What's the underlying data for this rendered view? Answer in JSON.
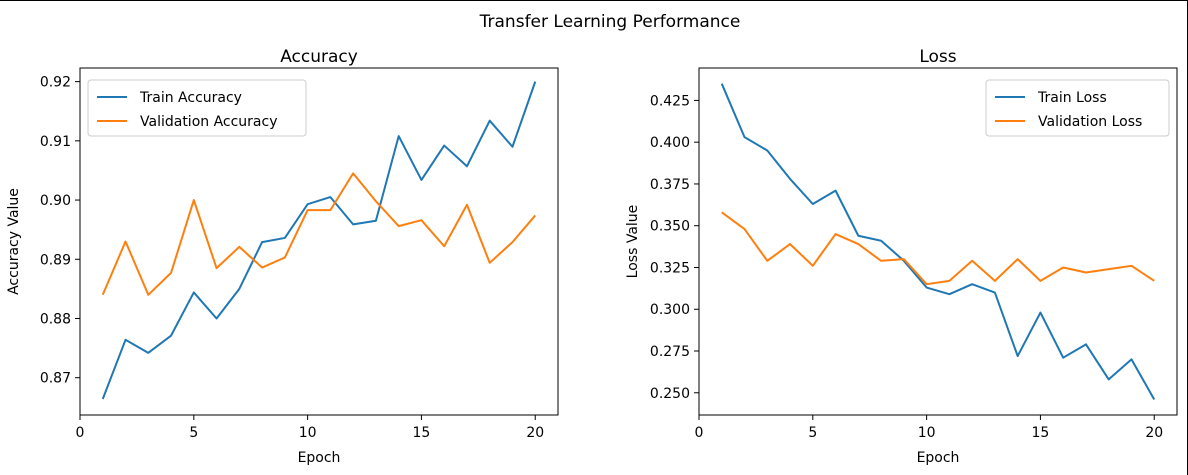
{
  "figure": {
    "title": "Transfer Learning Performance"
  },
  "chart_data": [
    {
      "type": "line",
      "title": "Accuracy",
      "xlabel": "Epoch",
      "ylabel": "Accuracy Value",
      "xlim": [
        0,
        21
      ],
      "ylim": [
        0.8637,
        0.9223
      ],
      "x_ticks": [
        0,
        5,
        10,
        15,
        20
      ],
      "y_ticks": [
        0.87,
        0.88,
        0.89,
        0.9,
        0.91,
        0.92
      ],
      "y_tick_labels": [
        "0.87",
        "0.88",
        "0.89",
        "0.90",
        "0.91",
        "0.92"
      ],
      "legend_position": "top-left",
      "x": [
        1,
        2,
        3,
        4,
        5,
        6,
        7,
        8,
        9,
        10,
        11,
        12,
        13,
        14,
        15,
        16,
        17,
        18,
        19,
        20
      ],
      "series": [
        {
          "name": "Train Accuracy",
          "color": "#1f77b4",
          "values": [
            0.8664,
            0.8764,
            0.8742,
            0.8771,
            0.8844,
            0.88,
            0.885,
            0.8929,
            0.8936,
            0.8993,
            0.9005,
            0.8959,
            0.8965,
            0.9108,
            0.9034,
            0.9092,
            0.9057,
            0.9134,
            0.909,
            0.92
          ]
        },
        {
          "name": "Validation Accuracy",
          "color": "#ff7f0e",
          "values": [
            0.884,
            0.893,
            0.884,
            0.8877,
            0.9,
            0.8885,
            0.8921,
            0.8886,
            0.8903,
            0.8983,
            0.8983,
            0.9045,
            0.8998,
            0.8956,
            0.8966,
            0.8922,
            0.8992,
            0.8894,
            0.8929,
            0.8974
          ]
        }
      ]
    },
    {
      "type": "line",
      "title": "Loss",
      "xlabel": "Epoch",
      "ylabel": "Loss Value",
      "xlim": [
        0,
        21
      ],
      "ylim": [
        0.2367,
        0.4444
      ],
      "x_ticks": [
        0,
        5,
        10,
        15,
        20
      ],
      "y_ticks": [
        0.25,
        0.275,
        0.3,
        0.325,
        0.35,
        0.375,
        0.4,
        0.425
      ],
      "y_tick_labels": [
        "0.250",
        "0.275",
        "0.300",
        "0.325",
        "0.350",
        "0.375",
        "0.400",
        "0.425"
      ],
      "legend_position": "top-right",
      "x": [
        1,
        2,
        3,
        4,
        5,
        6,
        7,
        8,
        9,
        10,
        11,
        12,
        13,
        14,
        15,
        16,
        17,
        18,
        19,
        20
      ],
      "series": [
        {
          "name": "Train Loss",
          "color": "#1f77b4",
          "values": [
            0.435,
            0.403,
            0.395,
            0.378,
            0.363,
            0.371,
            0.344,
            0.341,
            0.329,
            0.313,
            0.309,
            0.315,
            0.31,
            0.272,
            0.298,
            0.271,
            0.279,
            0.258,
            0.27,
            0.246
          ]
        },
        {
          "name": "Validation Loss",
          "color": "#ff7f0e",
          "values": [
            0.358,
            0.348,
            0.329,
            0.339,
            0.326,
            0.345,
            0.339,
            0.329,
            0.33,
            0.315,
            0.317,
            0.329,
            0.317,
            0.33,
            0.317,
            0.325,
            0.322,
            0.324,
            0.326,
            0.317
          ]
        }
      ]
    }
  ]
}
